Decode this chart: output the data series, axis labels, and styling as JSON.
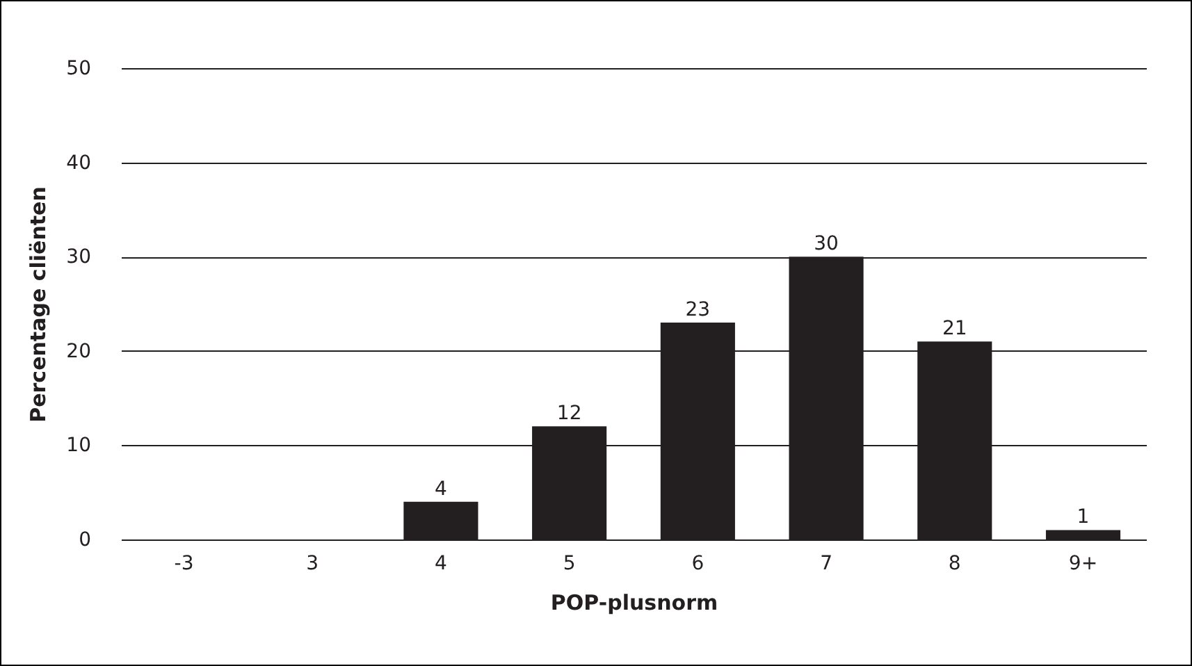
{
  "chart_data": {
    "type": "bar",
    "xlabel": "POP-plusnorm",
    "ylabel": "Percentage cliënten",
    "categories": [
      "-3",
      "3",
      "4",
      "5",
      "6",
      "7",
      "8",
      "9+"
    ],
    "values": [
      null,
      null,
      4,
      12,
      23,
      30,
      21,
      1
    ],
    "color": "#231f20",
    "ylim": [
      0,
      50
    ],
    "yticks": [
      0,
      10,
      20,
      30,
      40,
      50
    ],
    "grid": "y",
    "data_labels": true
  }
}
